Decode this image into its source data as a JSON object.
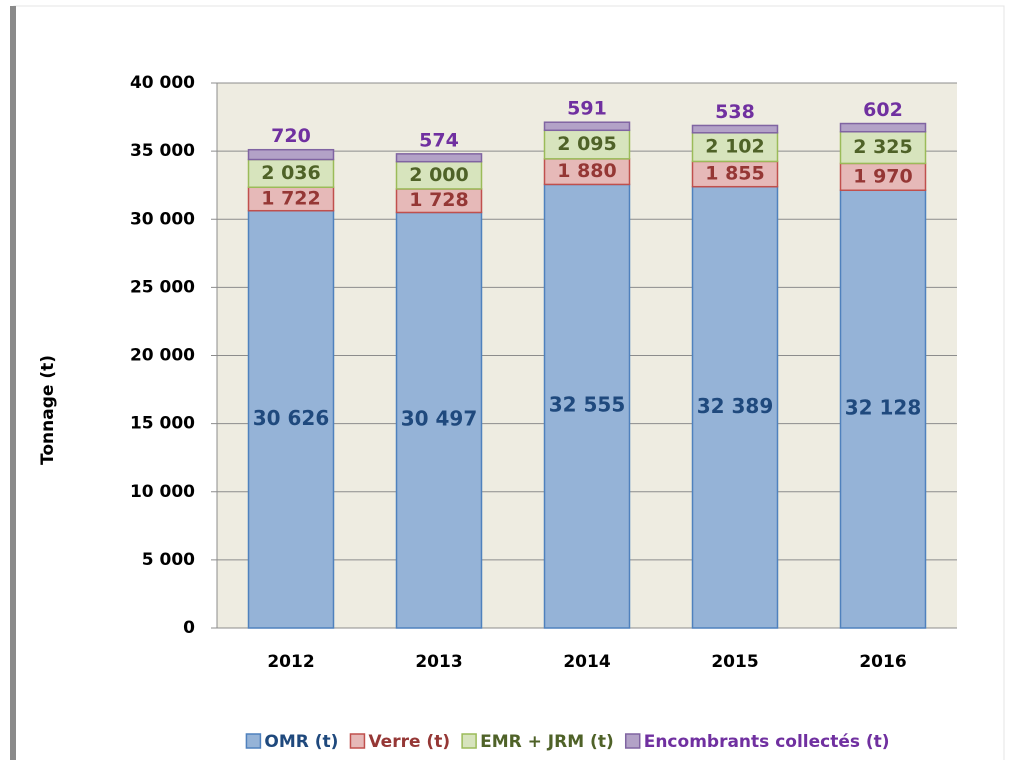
{
  "chart_data": {
    "type": "stacked_bar",
    "y_label": "Tonnage (t)",
    "categories": [
      "2012",
      "2013",
      "2014",
      "2015",
      "2016"
    ],
    "series": [
      {
        "name": "OMR (t)",
        "color": "#95b3d7",
        "stroke": "#4f81bd",
        "label_color": "#1f497d",
        "values": [
          30626,
          30497,
          32555,
          32389,
          32128
        ],
        "value_labels": [
          "30 626",
          "30 497",
          "32 555",
          "32 389",
          "32 128"
        ]
      },
      {
        "name": "Verre (t)",
        "color": "#e6b9b8",
        "stroke": "#c0504d",
        "label_color": "#953735",
        "values": [
          1722,
          1728,
          1880,
          1855,
          1970
        ],
        "value_labels": [
          "1 722",
          "1 728",
          "1 880",
          "1 855",
          "1 970"
        ]
      },
      {
        "name": "EMR + JRM (t)",
        "color": "#d7e4bd",
        "stroke": "#9bbb59",
        "label_color": "#4f6228",
        "values": [
          2036,
          2000,
          2095,
          2102,
          2325
        ],
        "value_labels": [
          "2 036",
          "2 000",
          "2 095",
          "2 102",
          "2 325"
        ]
      },
      {
        "name": "Encombrants collectés (t)",
        "color": "#b3a2c7",
        "stroke": "#8064a2",
        "label_color": "#7030a0",
        "values": [
          720,
          574,
          591,
          538,
          602
        ]
      }
    ],
    "ylim": [
      0,
      40000
    ],
    "yticks": [
      0,
      {
        "value": 5000,
        "label": "5 000"
      },
      {
        "value": 10000,
        "label": "10 000"
      },
      {
        "value": 15000,
        "label": "15 000"
      },
      {
        "value": 20000,
        "label": "20 000"
      },
      {
        "value": 25000,
        "label": "25 000"
      },
      {
        "value": 30000,
        "label": "30 000"
      },
      {
        "value": 35000,
        "label": "35 000"
      },
      {
        "value": 40000,
        "label": "40 000"
      }
    ],
    "grid": true,
    "legend": "bottom"
  }
}
